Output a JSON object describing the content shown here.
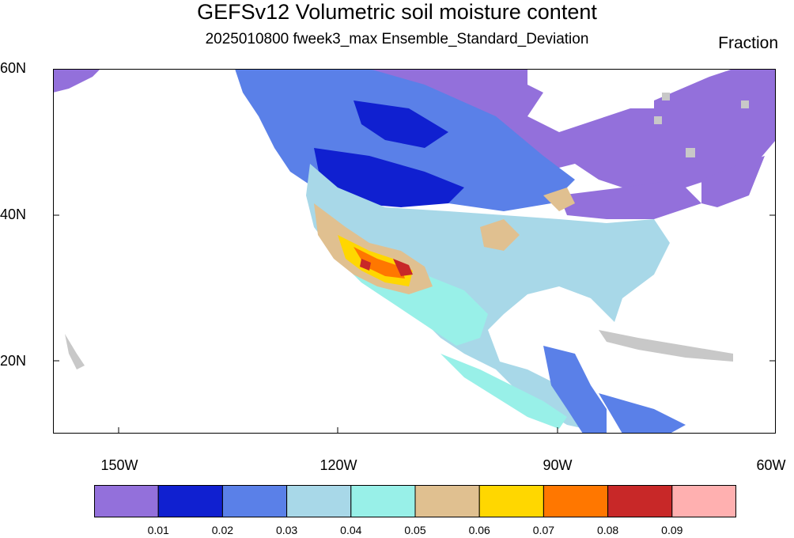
{
  "title": "GEFSv12 Volumetric soil moisture content",
  "subtitle": "2025010800 fweek3_max Ensemble_Standard_Deviation",
  "units": "Fraction",
  "lat_labels": [
    "60N",
    "40N",
    "20N"
  ],
  "lon_labels": [
    "150W",
    "120W",
    "90W",
    "60W"
  ],
  "colorbar": {
    "tick_labels": [
      "0.01",
      "0.02",
      "0.03",
      "0.04",
      "0.05",
      "0.06",
      "0.07",
      "0.08",
      "0.09"
    ],
    "colors": [
      "#9370db",
      "#1020d0",
      "#5a80e8",
      "#a8d8e8",
      "#98f0e8",
      "#e0c090",
      "#ffd700",
      "#ff7700",
      "#c82828",
      "#ffb0b0"
    ]
  },
  "no_data_color": "#c8c8c8"
}
